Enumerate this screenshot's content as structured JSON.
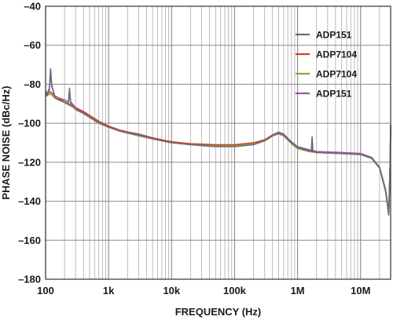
{
  "chart_data": {
    "type": "line",
    "xlabel": "FREQUENCY (Hz)",
    "ylabel": "PHASE NOISE (dBc/Hz)",
    "x_scale": "log",
    "xlim": [
      100,
      30000000
    ],
    "ylim": [
      -180,
      -40
    ],
    "x_ticks": [
      100,
      1000,
      10000,
      100000,
      1000000,
      10000000
    ],
    "x_tick_labels": [
      "100",
      "1k",
      "10k",
      "100k",
      "1M",
      "10M"
    ],
    "y_ticks": [
      -40,
      -60,
      -80,
      -100,
      -120,
      -140,
      -160,
      -180
    ],
    "y_tick_labels": [
      "–40",
      "–60",
      "–80",
      "–100",
      "–120",
      "–140",
      "–160",
      "–180"
    ],
    "grid": true,
    "legend_position": "top-right",
    "series": [
      {
        "name": "ADP151",
        "color": "#6a6a82",
        "points": [
          [
            100,
            -84
          ],
          [
            105,
            -86
          ],
          [
            115,
            -83
          ],
          [
            120,
            -72
          ],
          [
            125,
            -80
          ],
          [
            140,
            -87
          ],
          [
            160,
            -88
          ],
          [
            200,
            -89
          ],
          [
            230,
            -90
          ],
          [
            240,
            -82
          ],
          [
            250,
            -90
          ],
          [
            300,
            -93
          ],
          [
            400,
            -95
          ],
          [
            500,
            -97
          ],
          [
            700,
            -100
          ],
          [
            1000,
            -102
          ],
          [
            1500,
            -104
          ],
          [
            2000,
            -105
          ],
          [
            3000,
            -106
          ],
          [
            5000,
            -108
          ],
          [
            7000,
            -109
          ],
          [
            10000,
            -110
          ],
          [
            20000,
            -111
          ],
          [
            50000,
            -112
          ],
          [
            100000,
            -112
          ],
          [
            200000,
            -111
          ],
          [
            300000,
            -109
          ],
          [
            400000,
            -106.5
          ],
          [
            500000,
            -105
          ],
          [
            600000,
            -106
          ],
          [
            800000,
            -110
          ],
          [
            1000000,
            -112.5
          ],
          [
            1500000,
            -114
          ],
          [
            1650000,
            -114.5
          ],
          [
            1700000,
            -107
          ],
          [
            1750000,
            -114
          ],
          [
            2000000,
            -115
          ],
          [
            5000000,
            -115.5
          ],
          [
            10000000,
            -116
          ],
          [
            15000000,
            -118
          ],
          [
            20000000,
            -123
          ],
          [
            25000000,
            -135
          ],
          [
            28000000,
            -147
          ],
          [
            29500000,
            -120
          ],
          [
            30000000,
            -101
          ]
        ]
      },
      {
        "name": "ADP7104",
        "color": "#d0412a",
        "points": [
          [
            100,
            -85
          ],
          [
            120,
            -84
          ],
          [
            140,
            -86
          ],
          [
            200,
            -89
          ],
          [
            300,
            -92
          ],
          [
            500,
            -96
          ],
          [
            700,
            -99
          ],
          [
            1000,
            -101.5
          ],
          [
            1500,
            -103.5
          ],
          [
            2000,
            -104.5
          ],
          [
            3000,
            -106
          ],
          [
            5000,
            -107.5
          ],
          [
            7000,
            -108.5
          ],
          [
            10000,
            -109.5
          ],
          [
            20000,
            -110.5
          ],
          [
            50000,
            -111
          ],
          [
            100000,
            -111
          ],
          [
            200000,
            -110
          ],
          [
            300000,
            -108.5
          ],
          [
            400000,
            -106
          ],
          [
            500000,
            -105
          ],
          [
            600000,
            -106
          ],
          [
            800000,
            -110
          ],
          [
            1000000,
            -112.5
          ],
          [
            1500000,
            -114
          ],
          [
            2000000,
            -115
          ],
          [
            5000000,
            -115.5
          ],
          [
            10000000,
            -116
          ],
          [
            15000000,
            -118
          ],
          [
            20000000,
            -123
          ],
          [
            25000000,
            -135
          ],
          [
            28000000,
            -147
          ],
          [
            29500000,
            -120
          ],
          [
            30000000,
            -101
          ]
        ]
      },
      {
        "name": "ADP7104",
        "color": "#8faa2c",
        "points": [
          [
            100,
            -86
          ],
          [
            120,
            -85
          ],
          [
            140,
            -87
          ],
          [
            200,
            -89.5
          ],
          [
            300,
            -92.5
          ],
          [
            500,
            -96.5
          ],
          [
            700,
            -99.5
          ],
          [
            1000,
            -102
          ],
          [
            1500,
            -104
          ],
          [
            2000,
            -105
          ],
          [
            3000,
            -106.5
          ],
          [
            5000,
            -108
          ],
          [
            7000,
            -109
          ],
          [
            10000,
            -110
          ],
          [
            20000,
            -111
          ],
          [
            50000,
            -111.5
          ],
          [
            100000,
            -111.5
          ],
          [
            200000,
            -110.5
          ],
          [
            300000,
            -109
          ],
          [
            400000,
            -106.5
          ],
          [
            500000,
            -105.5
          ],
          [
            600000,
            -106.5
          ],
          [
            800000,
            -110.5
          ],
          [
            1000000,
            -113
          ],
          [
            1500000,
            -114.5
          ],
          [
            2000000,
            -115
          ],
          [
            5000000,
            -115.5
          ],
          [
            10000000,
            -116
          ],
          [
            15000000,
            -118
          ],
          [
            20000000,
            -123
          ],
          [
            25000000,
            -135
          ],
          [
            28000000,
            -147
          ],
          [
            29500000,
            -120
          ],
          [
            30000000,
            -101
          ]
        ]
      },
      {
        "name": "ADP151",
        "color": "#9a5aa0",
        "points": [
          [
            100,
            -83
          ],
          [
            105,
            -85
          ],
          [
            115,
            -82
          ],
          [
            120,
            -73
          ],
          [
            125,
            -81
          ],
          [
            140,
            -86
          ],
          [
            160,
            -87
          ],
          [
            200,
            -88
          ],
          [
            230,
            -89
          ],
          [
            240,
            -84
          ],
          [
            250,
            -89
          ],
          [
            300,
            -92
          ],
          [
            400,
            -94
          ],
          [
            500,
            -96
          ],
          [
            700,
            -99
          ],
          [
            1000,
            -101.5
          ],
          [
            1500,
            -103.5
          ],
          [
            2000,
            -104.5
          ],
          [
            3000,
            -105.5
          ],
          [
            5000,
            -107.5
          ],
          [
            7000,
            -108.5
          ],
          [
            10000,
            -109.5
          ],
          [
            20000,
            -110.5
          ],
          [
            50000,
            -111.5
          ],
          [
            100000,
            -111.5
          ],
          [
            200000,
            -110.5
          ],
          [
            300000,
            -108.5
          ],
          [
            400000,
            -106
          ],
          [
            500000,
            -104.5
          ],
          [
            600000,
            -105.5
          ],
          [
            800000,
            -109.5
          ],
          [
            1000000,
            -112
          ],
          [
            1500000,
            -113.5
          ],
          [
            2000000,
            -114.5
          ],
          [
            5000000,
            -115
          ],
          [
            10000000,
            -115.5
          ],
          [
            15000000,
            -117.5
          ],
          [
            20000000,
            -122.5
          ],
          [
            25000000,
            -134
          ],
          [
            28000000,
            -146
          ],
          [
            29500000,
            -120
          ],
          [
            30000000,
            -101
          ]
        ]
      }
    ]
  }
}
